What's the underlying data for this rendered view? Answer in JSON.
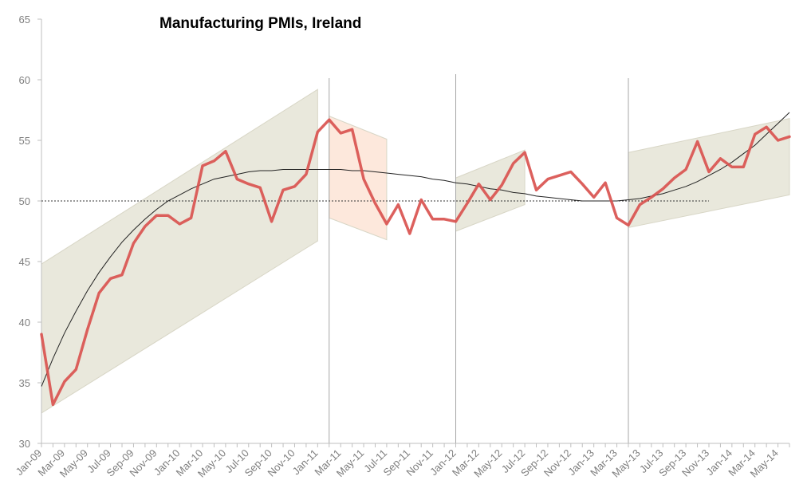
{
  "chart_data": {
    "type": "line",
    "title": "Manufacturing PMIs, Ireland",
    "xlabel": "",
    "ylabel": "",
    "ylim": [
      30,
      65
    ],
    "yticks": [
      30,
      35,
      40,
      45,
      50,
      55,
      60,
      65
    ],
    "grid": false,
    "legend": "none",
    "reference_line": {
      "y": 50,
      "style": "dotted",
      "x_end": "Nov-13"
    },
    "period_dividers": [
      "Feb-11",
      "Jan-12",
      "Apr-13"
    ],
    "x": [
      "Jan-09",
      "Feb-09",
      "Mar-09",
      "Apr-09",
      "May-09",
      "Jun-09",
      "Jul-09",
      "Aug-09",
      "Sep-09",
      "Oct-09",
      "Nov-09",
      "Dec-09",
      "Jan-10",
      "Feb-10",
      "Mar-10",
      "Apr-10",
      "May-10",
      "Jun-10",
      "Jul-10",
      "Aug-10",
      "Sep-10",
      "Oct-10",
      "Nov-10",
      "Dec-10",
      "Jan-11",
      "Feb-11",
      "Mar-11",
      "Apr-11",
      "May-11",
      "Jun-11",
      "Jul-11",
      "Aug-11",
      "Sep-11",
      "Oct-11",
      "Nov-11",
      "Dec-11",
      "Jan-12",
      "Feb-12",
      "Mar-12",
      "Apr-12",
      "May-12",
      "Jun-12",
      "Jul-12",
      "Aug-12",
      "Sep-12",
      "Oct-12",
      "Nov-12",
      "Dec-12",
      "Jan-13",
      "Feb-13",
      "Mar-13",
      "Apr-13",
      "May-13",
      "Jun-13",
      "Jul-13",
      "Aug-13",
      "Sep-13",
      "Oct-13",
      "Nov-13",
      "Dec-13",
      "Jan-14",
      "Feb-14",
      "Mar-14",
      "Apr-14",
      "May-14",
      "Jun-14"
    ],
    "x_tick_labels": [
      "Jan-09",
      "Mar-09",
      "May-09",
      "Jul-09",
      "Sep-09",
      "Nov-09",
      "Jan-10",
      "Mar-10",
      "May-10",
      "Jul-10",
      "Sep-10",
      "Nov-10",
      "Jan-11",
      "Mar-11",
      "May-11",
      "Jul-11",
      "Sep-11",
      "Nov-11",
      "Jan-12",
      "Mar-12",
      "May-12",
      "Jul-12",
      "Sep-12",
      "Nov-12",
      "Jan-13",
      "Mar-13",
      "May-13",
      "Jul-13",
      "Sep-13",
      "Nov-13",
      "Jan-14",
      "Mar-14",
      "May-14"
    ],
    "series": [
      {
        "role": "pmi",
        "color": "#d9534f",
        "values": [
          39.0,
          33.2,
          35.1,
          36.1,
          39.4,
          42.4,
          43.6,
          43.9,
          46.5,
          47.9,
          48.8,
          48.8,
          48.1,
          48.6,
          52.9,
          53.3,
          54.1,
          51.8,
          51.4,
          51.1,
          48.3,
          50.9,
          51.2,
          52.2,
          55.7,
          56.7,
          55.6,
          55.9,
          51.8,
          49.8,
          48.1,
          49.7,
          47.3,
          50.1,
          48.5,
          48.5,
          48.3,
          49.8,
          51.4,
          50.1,
          51.3,
          53.1,
          54.0,
          50.9,
          51.8,
          52.1,
          52.4,
          51.4,
          50.3,
          51.5,
          48.6,
          48.0,
          49.7,
          50.3,
          51.0,
          51.9,
          52.6,
          54.9,
          52.4,
          53.5,
          52.8,
          52.8,
          55.5,
          56.1,
          55.0,
          55.3
        ]
      }
    ],
    "trend_curve": {
      "role": "trend",
      "color": "#222222",
      "values": [
        34.7,
        37.0,
        39.1,
        40.9,
        42.6,
        44.1,
        45.4,
        46.6,
        47.6,
        48.5,
        49.3,
        50.0,
        50.5,
        51.0,
        51.4,
        51.8,
        52.0,
        52.2,
        52.4,
        52.5,
        52.5,
        52.6,
        52.6,
        52.6,
        52.6,
        52.6,
        52.6,
        52.5,
        52.5,
        52.4,
        52.3,
        52.2,
        52.1,
        52.0,
        51.8,
        51.7,
        51.5,
        51.4,
        51.2,
        51.0,
        50.9,
        50.7,
        50.6,
        50.4,
        50.3,
        50.2,
        50.1,
        50.0,
        50.0,
        50.0,
        50.0,
        50.1,
        50.2,
        50.4,
        50.6,
        50.9,
        51.2,
        51.6,
        52.1,
        52.6,
        53.2,
        53.9,
        54.6,
        55.5,
        56.4,
        57.3
      ]
    },
    "bands": [
      {
        "from": "Jan-09",
        "to": "Jan-11",
        "lower": [
          32.5,
          46.7
        ],
        "upper": [
          44.8,
          59.2
        ],
        "fill": "#e9e8dc"
      },
      {
        "from": "Feb-11",
        "to": "Jul-11",
        "lower": [
          48.6,
          46.8
        ],
        "upper": [
          57.0,
          55.1
        ],
        "fill": "#fde8dc"
      },
      {
        "from": "Jan-12",
        "to": "Jul-12",
        "lower": [
          47.5,
          49.7
        ],
        "upper": [
          51.9,
          54.2
        ],
        "fill": "#e9e8dc"
      },
      {
        "from": "Apr-13",
        "to": "Jun-14",
        "lower": [
          47.8,
          50.5
        ],
        "upper": [
          54.0,
          56.8
        ],
        "fill": "#e9e8dc"
      }
    ]
  }
}
